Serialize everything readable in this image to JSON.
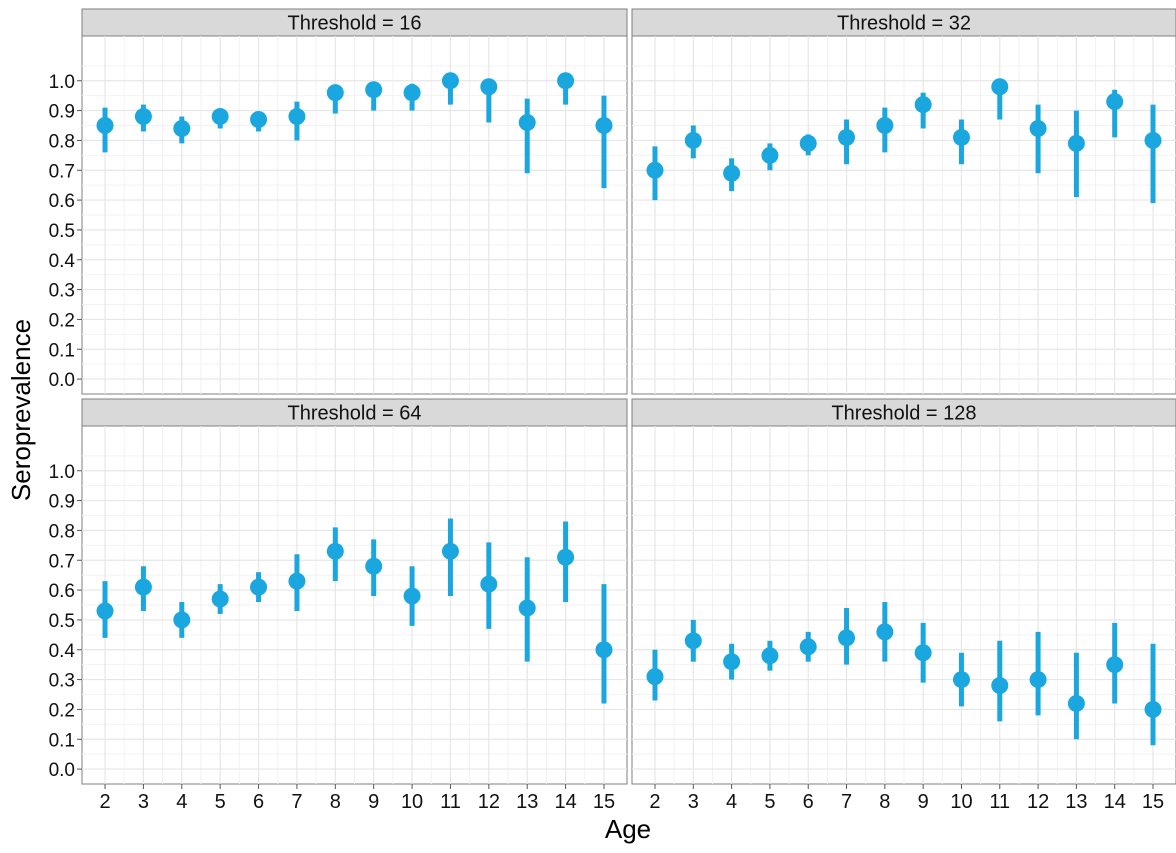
{
  "chart_data": {
    "type": "scatter",
    "subtype": "point-range faceted",
    "xlabel": "Age",
    "ylabel": "Seroprevalence",
    "ylim": [
      -0.05,
      1.15
    ],
    "yticks": [
      "0.0",
      "0.1",
      "0.2",
      "0.3",
      "0.4",
      "0.5",
      "0.6",
      "0.7",
      "0.8",
      "0.9",
      "1.0"
    ],
    "x": [
      2,
      3,
      4,
      5,
      6,
      7,
      8,
      9,
      10,
      11,
      12,
      13,
      14,
      15
    ],
    "grid": true,
    "color": "#1AA7E0",
    "panels": [
      {
        "label": "Threshold = 16",
        "values": [
          0.85,
          0.88,
          0.84,
          0.88,
          0.87,
          0.88,
          0.96,
          0.97,
          0.96,
          1.0,
          0.98,
          0.86,
          1.0,
          0.85
        ],
        "lower": [
          0.76,
          0.83,
          0.79,
          0.84,
          0.83,
          0.8,
          0.89,
          0.9,
          0.9,
          0.92,
          0.86,
          0.69,
          0.92,
          0.64
        ],
        "upper": [
          0.91,
          0.92,
          0.88,
          0.9,
          0.89,
          0.93,
          0.98,
          0.99,
          0.99,
          1.0,
          1.0,
          0.94,
          1.0,
          0.95
        ]
      },
      {
        "label": "Threshold = 32",
        "values": [
          0.7,
          0.8,
          0.69,
          0.75,
          0.79,
          0.81,
          0.85,
          0.92,
          0.81,
          0.98,
          0.84,
          0.79,
          0.93,
          0.8
        ],
        "lower": [
          0.6,
          0.74,
          0.63,
          0.7,
          0.75,
          0.72,
          0.76,
          0.84,
          0.72,
          0.87,
          0.69,
          0.61,
          0.81,
          0.59
        ],
        "upper": [
          0.78,
          0.85,
          0.74,
          0.79,
          0.82,
          0.87,
          0.91,
          0.96,
          0.87,
          0.99,
          0.92,
          0.9,
          0.97,
          0.92
        ]
      },
      {
        "label": "Threshold = 64",
        "values": [
          0.53,
          0.61,
          0.5,
          0.57,
          0.61,
          0.63,
          0.73,
          0.68,
          0.58,
          0.73,
          0.62,
          0.54,
          0.71,
          0.4
        ],
        "lower": [
          0.44,
          0.53,
          0.44,
          0.52,
          0.56,
          0.53,
          0.63,
          0.58,
          0.48,
          0.58,
          0.47,
          0.36,
          0.56,
          0.22
        ],
        "upper": [
          0.63,
          0.68,
          0.56,
          0.62,
          0.66,
          0.72,
          0.81,
          0.77,
          0.68,
          0.84,
          0.76,
          0.71,
          0.83,
          0.62
        ]
      },
      {
        "label": "Threshold = 128",
        "values": [
          0.31,
          0.43,
          0.36,
          0.38,
          0.41,
          0.44,
          0.46,
          0.39,
          0.3,
          0.28,
          0.3,
          0.22,
          0.35,
          0.2
        ],
        "lower": [
          0.23,
          0.36,
          0.3,
          0.33,
          0.36,
          0.35,
          0.36,
          0.29,
          0.21,
          0.16,
          0.18,
          0.1,
          0.22,
          0.08
        ],
        "upper": [
          0.4,
          0.5,
          0.42,
          0.43,
          0.46,
          0.54,
          0.56,
          0.49,
          0.39,
          0.43,
          0.46,
          0.39,
          0.49,
          0.42
        ]
      }
    ]
  }
}
